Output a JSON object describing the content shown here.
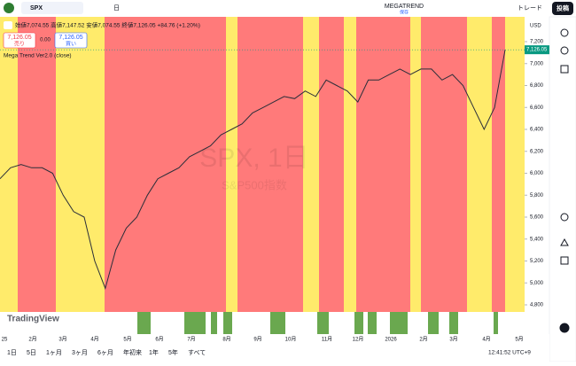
{
  "toolbar": {
    "symbol": "SPX",
    "interval": "日",
    "layout_name": "MEGATREND",
    "layout_status": "保存",
    "trade": "トレード",
    "publish": "投稿"
  },
  "legend": {
    "ohlc": "始値7,074.55 高値7,147.52 安値7,074.55 終値7,126.05 +84.76 (+1.20%)",
    "sell_price": "7,126.05",
    "sell": "売り",
    "spread": "0.00",
    "buy_price": "7,126.05",
    "buy": "買い",
    "indicator": "Mega Trend Ver2.0 (close)"
  },
  "watermark": {
    "title": "SPX, 1日",
    "subtitle": "S&P500指数"
  },
  "chart_data": {
    "type": "line",
    "currency": "USD",
    "color": "#2a2e39",
    "values": [
      5950,
      6050,
      6080,
      6050,
      6050,
      6000,
      5800,
      5650,
      5600,
      5200,
      4950,
      5300,
      5500,
      5600,
      5800,
      5950,
      6000,
      6050,
      6150,
      6200,
      6250,
      6350,
      6400,
      6450,
      6550,
      6600,
      6650,
      6700,
      6680,
      6750,
      6700,
      6850,
      6800,
      6750,
      6650,
      6850,
      6850,
      6900,
      6950,
      6900,
      6950,
      6950,
      6850,
      6900,
      6800,
      6600,
      6400,
      6600,
      7126.05
    ],
    "last_price": {
      "value": 7126.05,
      "label": "7,126.05"
    },
    "ylim": [
      4700,
      7300
    ],
    "yticks": [
      {
        "value": 4800,
        "label": "4,800"
      },
      {
        "value": 5000,
        "label": "5,000"
      },
      {
        "value": 5200,
        "label": "5,200"
      },
      {
        "value": 5400,
        "label": "5,400"
      },
      {
        "value": 5600,
        "label": "5,600"
      },
      {
        "value": 5800,
        "label": "5,800"
      },
      {
        "value": 6000,
        "label": "6,000"
      },
      {
        "value": 6200,
        "label": "6,200"
      },
      {
        "value": 6400,
        "label": "6,400"
      },
      {
        "value": 6600,
        "label": "6,600"
      },
      {
        "value": 6800,
        "label": "6,800"
      },
      {
        "value": 7000,
        "label": "7,000"
      },
      {
        "value": 7200,
        "label": "7,200"
      }
    ],
    "x_labels": [
      "25",
      "2月",
      "3月",
      "4月",
      "5月",
      "6月",
      "7月",
      "8月",
      "9月",
      "10月",
      "11月",
      "12月",
      "2026",
      "2月",
      "3月",
      "4月",
      "5月"
    ]
  },
  "footer": {
    "ranges": [
      "1日",
      "5日",
      "1ヶ月",
      "3ヶ月",
      "6ヶ月",
      "年初来",
      "1年",
      "5年",
      "すべて"
    ],
    "clock": "12:41:52 UTC+9",
    "logo": "TradingView"
  }
}
